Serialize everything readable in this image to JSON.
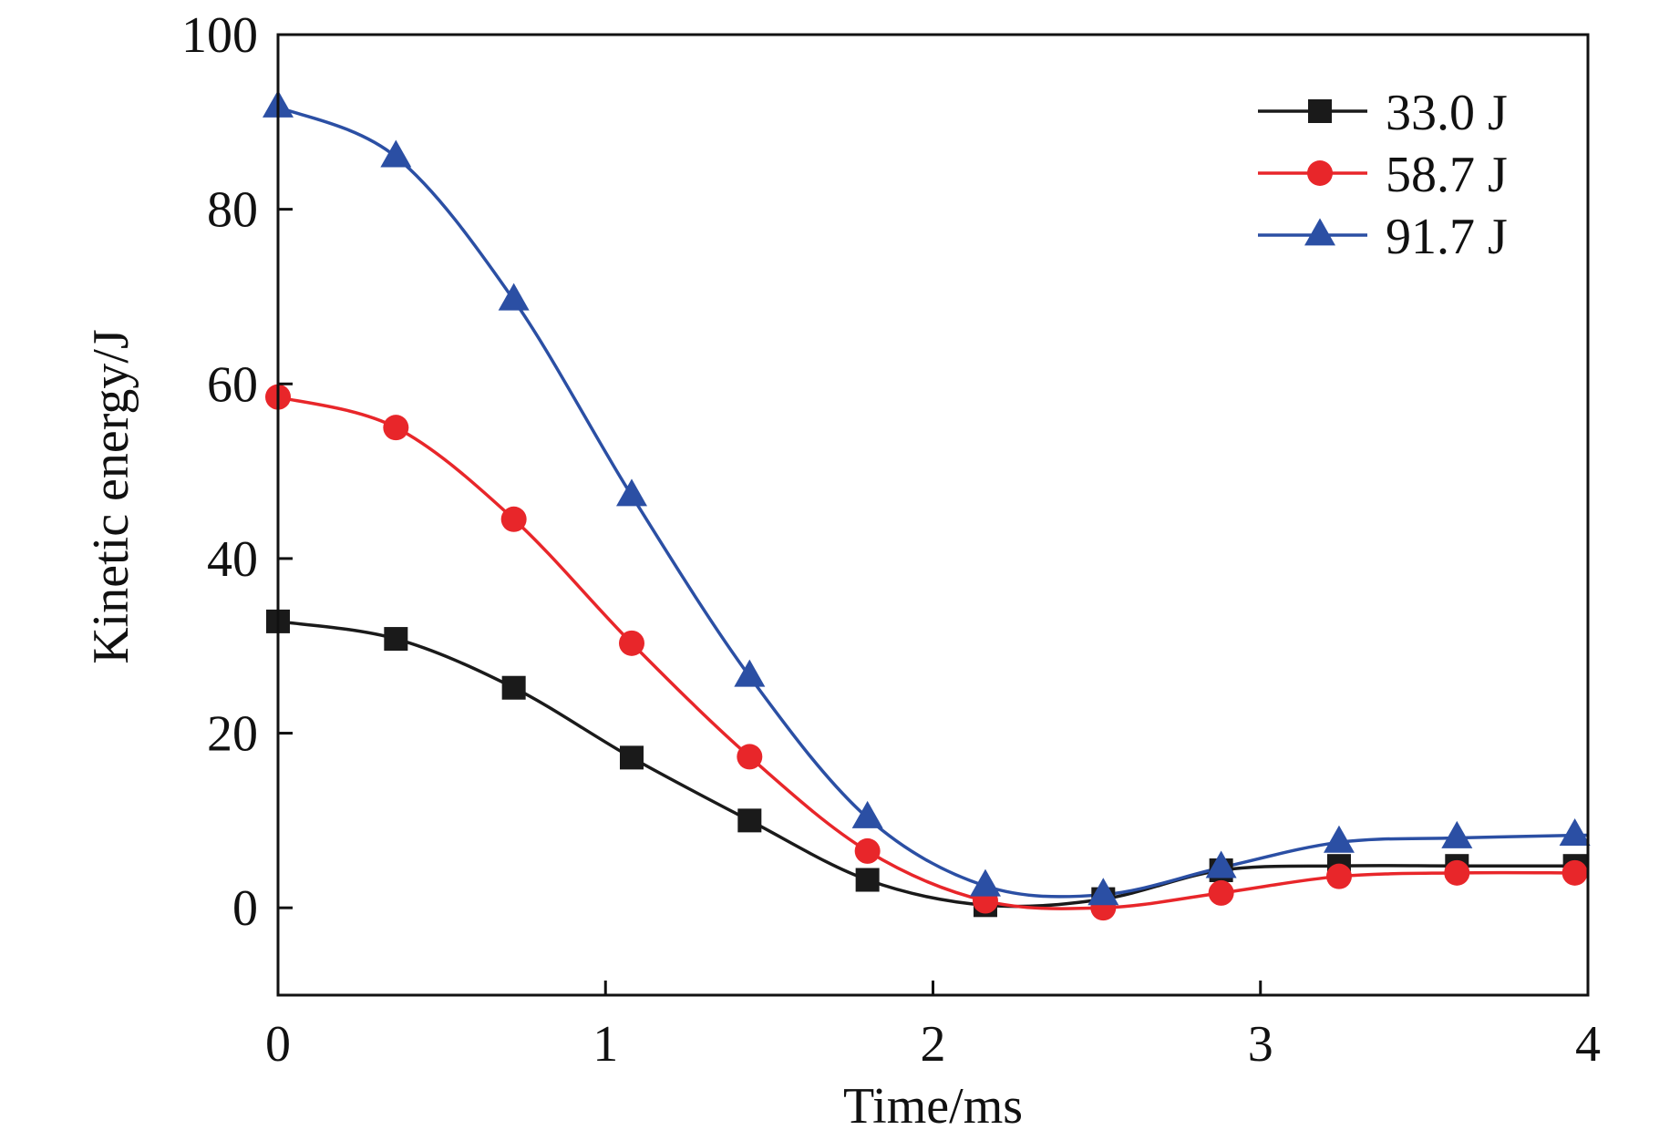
{
  "chart_data": {
    "type": "line",
    "title": "",
    "xlabel": "Time/ms",
    "ylabel": "Kinetic energy/J",
    "xlim": [
      0,
      4
    ],
    "ylim": [
      -10,
      100
    ],
    "xticks": [
      0,
      1,
      2,
      3,
      4
    ],
    "yticks": [
      0,
      20,
      40,
      60,
      80,
      100
    ],
    "xtick_labels": [
      "0",
      "1",
      "2",
      "3",
      "4"
    ],
    "ytick_labels": [
      "0",
      "20",
      "40",
      "60",
      "80",
      "100"
    ],
    "grid": false,
    "legend_position": "top-right",
    "x": [
      0,
      0.36,
      0.72,
      1.08,
      1.44,
      1.8,
      2.16,
      2.52,
      2.88,
      3.24,
      3.6,
      3.96
    ],
    "series": [
      {
        "name": "33.0 J",
        "color": "#1a1a1a",
        "marker": "square",
        "values": [
          32.8,
          30.8,
          25.2,
          17.2,
          10.0,
          3.2,
          0.3,
          1.0,
          4.3,
          4.8,
          4.8,
          4.8
        ]
      },
      {
        "name": "58.7 J",
        "color": "#e8262a",
        "marker": "circle",
        "values": [
          58.5,
          55.0,
          44.5,
          30.3,
          17.3,
          6.5,
          0.8,
          0.0,
          1.7,
          3.6,
          4.0,
          4.0
        ]
      },
      {
        "name": "91.7 J",
        "color": "#2b4fa4",
        "marker": "triangle",
        "values": [
          91.7,
          86.0,
          69.6,
          47.2,
          26.5,
          10.3,
          2.5,
          1.5,
          4.6,
          7.5,
          8.0,
          8.3
        ]
      }
    ]
  }
}
